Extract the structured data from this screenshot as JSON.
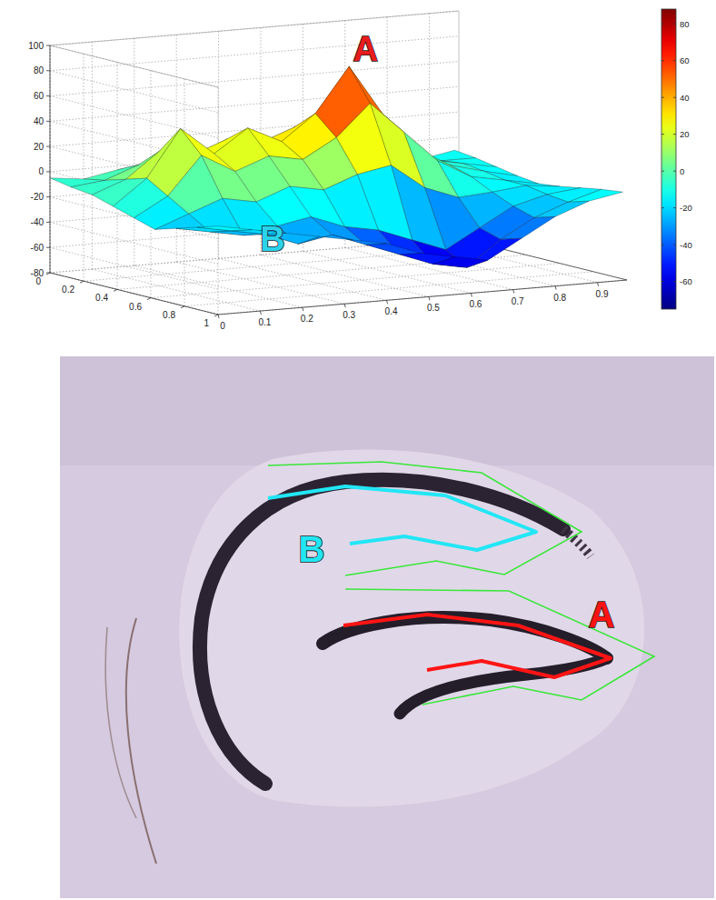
{
  "chart_data": {
    "type": "surface",
    "x": [
      0,
      0.08,
      0.16,
      0.24,
      0.32,
      0.4,
      0.48,
      0.56,
      0.64,
      0.72,
      0.8,
      0.88,
      0.96
    ],
    "y": [
      0,
      0.125,
      0.25,
      0.375,
      0.5,
      0.625,
      0.75,
      0.875,
      1
    ],
    "z": [
      [
        -5,
        -8,
        -3,
        0,
        5,
        3,
        0,
        -5,
        -8,
        -10,
        -12,
        -15,
        -10
      ],
      [
        -8,
        -5,
        5,
        10,
        12,
        15,
        10,
        5,
        0,
        -5,
        -10,
        -12,
        -12
      ],
      [
        -10,
        0,
        20,
        15,
        25,
        20,
        30,
        25,
        15,
        5,
        -5,
        -10,
        -15
      ],
      [
        -15,
        5,
        42,
        20,
        38,
        25,
        45,
        80,
        40,
        10,
        -5,
        -12,
        -18
      ],
      [
        -20,
        -5,
        25,
        10,
        20,
        15,
        30,
        55,
        30,
        5,
        -10,
        -15,
        -20
      ],
      [
        -25,
        -15,
        -5,
        -10,
        0,
        -5,
        5,
        10,
        -10,
        -20,
        -18,
        -15,
        -18
      ],
      [
        -20,
        -25,
        -30,
        -25,
        -20,
        -30,
        -35,
        -45,
        -55,
        -40,
        -25,
        -18,
        -15
      ],
      [
        -15,
        -20,
        -25,
        -35,
        -30,
        -40,
        -50,
        -60,
        -65,
        -45,
        -30,
        -20,
        -12
      ],
      [
        -10,
        -15,
        -20,
        -25,
        -30,
        -35,
        -45,
        -50,
        -55,
        -40,
        -25,
        -15,
        -10
      ]
    ],
    "xlim": [
      0,
      0.97
    ],
    "xticks": [
      0,
      0.1,
      0.2,
      0.3,
      0.4,
      0.5,
      0.6,
      0.7,
      0.8,
      0.9
    ],
    "ylim": [
      0,
      1
    ],
    "yticks": [
      0,
      0.2,
      0.4,
      0.6,
      0.8,
      1
    ],
    "zlim": [
      -80,
      100
    ],
    "zticks": [
      -80,
      -60,
      -40,
      -20,
      0,
      20,
      40,
      60,
      80,
      100
    ],
    "colorbar_lim": [
      -75,
      88
    ],
    "colorbar_ticks": [
      -60,
      -40,
      -20,
      0,
      20,
      40,
      60,
      80
    ],
    "grid": true,
    "annotations": [
      {
        "text": "A",
        "color": "#e81c1c"
      },
      {
        "text": "B",
        "color": "#29d3ea"
      }
    ]
  },
  "histology": {
    "annotations": [
      {
        "text": "B",
        "color": "#22e6f5"
      },
      {
        "text": "A",
        "color": "#ff1414"
      }
    ]
  }
}
